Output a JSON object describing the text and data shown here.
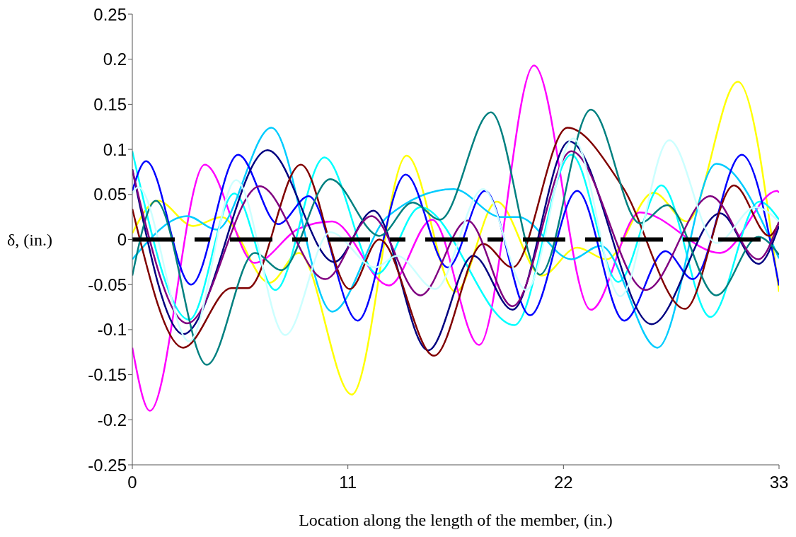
{
  "chart_data": {
    "type": "line",
    "xlabel": "Location along the length of the member, (in.)",
    "ylabel": "δ, (in.)",
    "xlim": [
      0,
      33
    ],
    "xticks": [
      0,
      11,
      22,
      33
    ],
    "ylim": [
      -0.25,
      0.25
    ],
    "yticks": [
      -0.25,
      -0.2,
      -0.15,
      -0.1,
      -0.05,
      0,
      0.05,
      0.1,
      0.15,
      0.2,
      0.25
    ],
    "grid": false,
    "legend": false,
    "marker": "none",
    "line_style": "solid",
    "ref_lines": [
      {
        "axis": "y",
        "value": 0,
        "color": "#000000",
        "line_style": "dashed"
      }
    ],
    "series": [
      {
        "color": "#ffff00",
        "x": [
          0,
          1.3,
          3.1,
          4.55,
          7.0,
          8.5,
          11.2,
          14.0,
          16.5,
          18.6,
          20.9,
          22.7,
          24.2,
          26.6,
          28.3,
          30.9,
          33
        ],
        "values": [
          0.007,
          0.043,
          0.015,
          0.025,
          -0.048,
          -0.015,
          -0.172,
          0.093,
          -0.058,
          0.042,
          -0.04,
          -0.009,
          -0.022,
          0.052,
          0.02,
          0.175,
          -0.058
        ]
      },
      {
        "color": "#ff00ff",
        "x": [
          0,
          0.9,
          3.7,
          6.25,
          8.5,
          10.2,
          13.1,
          15.3,
          17.7,
          20.5,
          23.4,
          25.9,
          30.0,
          32.9,
          33
        ],
        "values": [
          -0.12,
          -0.19,
          0.083,
          -0.026,
          0.012,
          0.02,
          -0.051,
          0.022,
          -0.117,
          0.193,
          -0.078,
          0.03,
          -0.015,
          0.054,
          0.052
        ]
      },
      {
        "color": "#00ffff",
        "x": [
          0,
          2.9,
          5.2,
          7.3,
          9.8,
          12.5,
          14.7,
          19.5,
          22.4,
          24.8,
          27.0,
          29.5,
          32.0,
          33
        ],
        "values": [
          0.098,
          -0.089,
          0.051,
          -0.056,
          0.091,
          -0.038,
          0.036,
          -0.095,
          0.094,
          -0.047,
          0.06,
          -0.086,
          0.042,
          0.022
        ]
      },
      {
        "color": "#00ccff",
        "x": [
          0,
          2.8,
          4.3,
          7.1,
          10.2,
          13.0,
          16.4,
          18.8,
          19.7,
          22.4,
          23.9,
          26.8,
          29.8,
          33
        ],
        "values": [
          -0.022,
          0.026,
          0.011,
          0.124,
          -0.08,
          0.025,
          0.056,
          0.025,
          0.025,
          -0.022,
          -0.007,
          -0.12,
          0.084,
          -0.021
        ]
      },
      {
        "color": "#0000ff",
        "x": [
          0,
          0.7,
          3.0,
          5.4,
          7.45,
          9.0,
          11.5,
          13.95,
          16.1,
          18.0,
          20.3,
          22.7,
          25.1,
          27.2,
          28.6,
          31.1,
          33
        ],
        "values": [
          0.054,
          0.087,
          -0.05,
          0.094,
          0.017,
          0.048,
          -0.09,
          0.072,
          -0.031,
          0.054,
          -0.084,
          0.054,
          -0.09,
          -0.013,
          -0.044,
          0.094,
          -0.051
        ]
      },
      {
        "color": "#000080",
        "x": [
          0,
          2.6,
          6.9,
          10.3,
          12.3,
          15.1,
          17.4,
          19.4,
          22.3,
          26.5,
          30.0,
          31.95,
          33
        ],
        "values": [
          0.078,
          -0.105,
          0.099,
          -0.025,
          0.032,
          -0.123,
          -0.018,
          -0.078,
          0.109,
          -0.094,
          0.029,
          -0.027,
          0.015
        ]
      },
      {
        "color": "#800000",
        "x": [
          0,
          2.6,
          5.05,
          5.9,
          8.6,
          11.1,
          12.6,
          15.4,
          17.9,
          19.4,
          22.2,
          25.0,
          28.2,
          30.7,
          32.5,
          33
        ],
        "values": [
          0.034,
          -0.12,
          -0.054,
          -0.054,
          0.083,
          -0.055,
          0.0,
          -0.129,
          -0.005,
          -0.031,
          0.124,
          0.059,
          -0.077,
          0.06,
          0.004,
          0.019
        ]
      },
      {
        "color": "#008080",
        "x": [
          0,
          1.2,
          3.8,
          6.25,
          7.6,
          10.1,
          12.6,
          14.3,
          15.7,
          18.3,
          20.8,
          23.4,
          25.9,
          27.3,
          29.8,
          31.95,
          33
        ],
        "values": [
          -0.04,
          0.043,
          -0.139,
          -0.015,
          -0.034,
          0.067,
          0.004,
          0.041,
          0.022,
          0.141,
          -0.039,
          0.144,
          0.018,
          0.038,
          -0.062,
          0.003,
          -0.017
        ]
      },
      {
        "color": "#800080",
        "x": [
          0,
          2.8,
          6.5,
          9.85,
          12.2,
          14.7,
          17.1,
          19.4,
          22.4,
          26.2,
          29.5,
          31.95,
          33
        ],
        "values": [
          0.077,
          -0.093,
          0.059,
          -0.044,
          0.026,
          -0.062,
          0.021,
          -0.074,
          0.098,
          -0.056,
          0.048,
          -0.022,
          0.02
        ]
      },
      {
        "color": "#ccffff",
        "x": [
          0,
          0.3,
          2.9,
          5.3,
          7.8,
          10.1,
          12.4,
          13.5,
          15.45,
          17.9,
          20.1,
          22.5,
          24.9,
          27.4,
          29.8,
          31.8,
          33
        ],
        "values": [
          0.051,
          0.058,
          -0.113,
          0.066,
          -0.106,
          0.008,
          -0.031,
          -0.018,
          -0.055,
          0.056,
          -0.056,
          0.112,
          -0.063,
          0.11,
          -0.004,
          0.036,
          0.02
        ]
      }
    ]
  }
}
